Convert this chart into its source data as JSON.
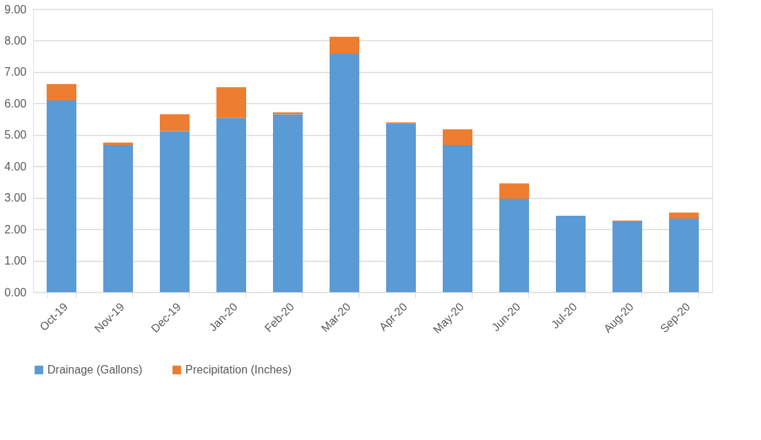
{
  "chart_data": {
    "type": "bar",
    "stacked": true,
    "categories": [
      "Oct-19",
      "Nov-19",
      "Dec-19",
      "Jan-20",
      "Feb-20",
      "Mar-20",
      "Apr-20",
      "May-20",
      "Jun-20",
      "Jul-20",
      "Aug-20",
      "Sep-20"
    ],
    "series": [
      {
        "name": "Drainage (Gallons)",
        "color": "#5b9bd5",
        "values": [
          6.1,
          4.68,
          5.12,
          5.54,
          5.66,
          7.58,
          5.37,
          4.68,
          2.97,
          2.43,
          2.25,
          2.34
        ]
      },
      {
        "name": "Precipitation (Inches)",
        "color": "#ed7d31",
        "values": [
          0.52,
          0.08,
          0.54,
          0.98,
          0.06,
          0.54,
          0.03,
          0.5,
          0.49,
          0.0,
          0.03,
          0.19
        ]
      }
    ],
    "ylim": [
      0,
      9
    ],
    "yticks": [
      {
        "value": 0,
        "label": "0.00"
      },
      {
        "value": 1,
        "label": "1.00"
      },
      {
        "value": 2,
        "label": "2.00"
      },
      {
        "value": 3,
        "label": "3.00"
      },
      {
        "value": 4,
        "label": "4.00"
      },
      {
        "value": 5,
        "label": "5.00"
      },
      {
        "value": 6,
        "label": "6.00"
      },
      {
        "value": 7,
        "label": "7.00"
      },
      {
        "value": 8,
        "label": "8.00"
      },
      {
        "value": 9,
        "label": "9.00"
      }
    ],
    "grid": "y",
    "legend": "bottom"
  }
}
